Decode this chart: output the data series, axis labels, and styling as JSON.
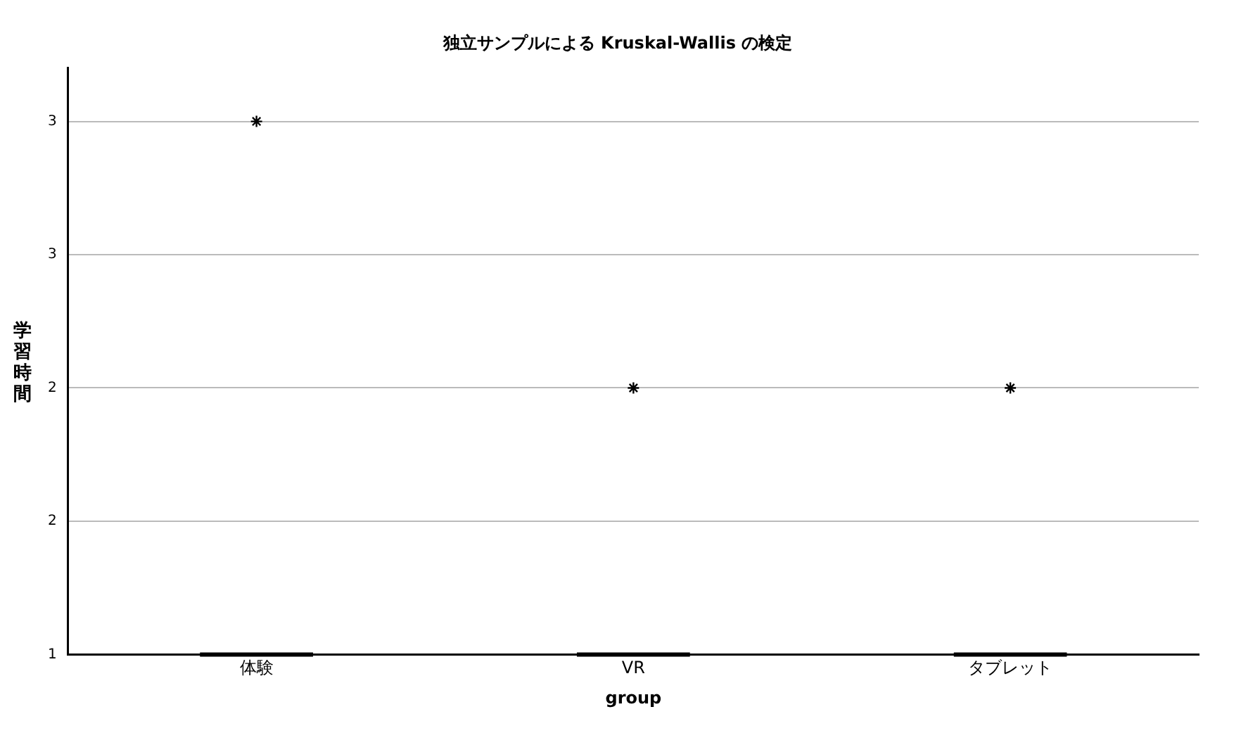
{
  "chart_data": {
    "type": "box",
    "title": "独立サンプルによる Kruskal-Wallis の検定",
    "xlabel": "group",
    "ylabel": "学習時間",
    "categories": [
      "体験",
      "VR",
      "タブレット"
    ],
    "boxes": [
      {
        "low": 1,
        "q1": 1,
        "median": 1,
        "q3": 1,
        "high": 1,
        "outliers": [
          3
        ]
      },
      {
        "low": 1,
        "q1": 1,
        "median": 1,
        "q3": 1,
        "high": 1,
        "outliers": [
          2
        ]
      },
      {
        "low": 1,
        "q1": 1,
        "median": 1,
        "q3": 1,
        "high": 1,
        "outliers": [
          2
        ]
      }
    ],
    "color": "#000000",
    "marker": "star",
    "ylim": [
      1,
      3.2
    ],
    "yticks": [
      1,
      {
        "value": 1.5,
        "label": "2"
      },
      2,
      {
        "value": 2.5,
        "label": "3"
      },
      3
    ],
    "grid": "y",
    "legend": false
  }
}
